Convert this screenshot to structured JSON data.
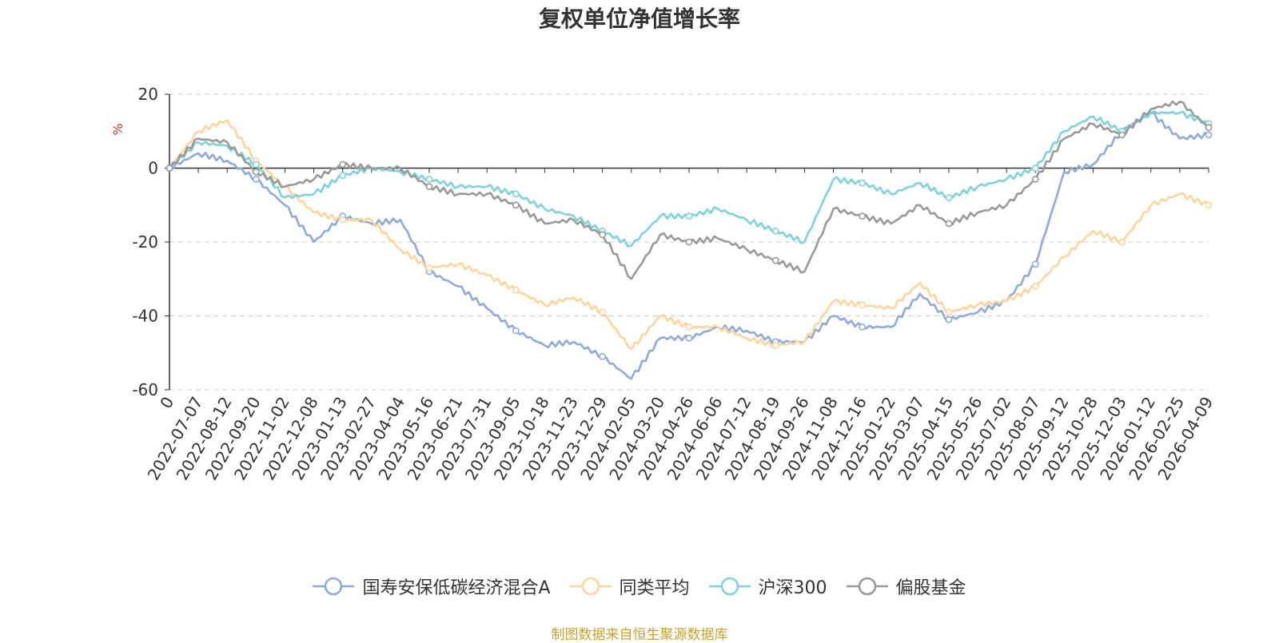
{
  "chart_data": {
    "type": "line",
    "title": "复权单位净值增长率",
    "ylabel": "%",
    "xlabel": "",
    "ylim": [
      -60,
      20
    ],
    "yticks": [
      20,
      0,
      -20,
      -40,
      -60
    ],
    "grid": true,
    "legend_position": "bottom",
    "source_note": "制图数据来自恒生聚源数据库",
    "categories": [
      "0",
      "2022-07-07",
      "2022-08-12",
      "2022-09-20",
      "2022-11-02",
      "2022-12-08",
      "2023-01-13",
      "2023-02-27",
      "2023-04-04",
      "2023-05-16",
      "2023-06-21",
      "2023-07-31",
      "2023-09-05",
      "2023-10-18",
      "2023-11-23",
      "2023-12-29",
      "2024-02-05",
      "2024-03-20",
      "2024-04-26",
      "2024-06-06",
      "2024-07-12",
      "2024-08-19",
      "2024-09-26",
      "2024-11-08",
      "2024-12-16",
      "2025-01-22",
      "2025-03-07",
      "2025-04-15",
      "2025-05-26",
      "2025-07-02",
      "2025-08-07",
      "2025-09-12",
      "2025-10-28",
      "2025-12-03",
      "2026-01-12",
      "2026-02-25",
      "2026-04-09"
    ],
    "series": [
      {
        "name": "国寿安保低碳经济混合A",
        "color": "#8eaadc",
        "values": [
          0,
          4,
          2,
          -3,
          -10,
          -20,
          -13,
          -15,
          -14,
          -28,
          -32,
          -38,
          -44,
          -48,
          -47,
          -51,
          -57,
          -46,
          -46,
          -43,
          -44,
          -47,
          -47,
          -40,
          -43,
          -43,
          -34,
          -41,
          -39,
          -36,
          -26,
          -1,
          1,
          10,
          15,
          8,
          9
        ]
      },
      {
        "name": "同类平均",
        "color": "#fdd59a",
        "values": [
          0,
          10,
          13,
          2,
          -5,
          -12,
          -14,
          -14,
          -22,
          -27,
          -26,
          -29,
          -33,
          -37,
          -35,
          -39,
          -49,
          -40,
          -43,
          -43,
          -46,
          -48,
          -47,
          -36,
          -37,
          -38,
          -31,
          -39,
          -37,
          -36,
          -32,
          -24,
          -17,
          -20,
          -10,
          -7,
          -10
        ]
      },
      {
        "name": "沪深300",
        "color": "#7dd3d8",
        "values": [
          0,
          7,
          6,
          1,
          -8,
          -7,
          -2,
          0,
          -1,
          -3,
          -5,
          -5,
          -7,
          -11,
          -13,
          -17,
          -21,
          -13,
          -13,
          -11,
          -14,
          -17,
          -20,
          -3,
          -4,
          -7,
          -4,
          -8,
          -5,
          -3,
          0,
          10,
          14,
          10,
          15,
          15,
          12
        ]
      },
      {
        "name": "偏股基金",
        "color": "#999999",
        "values": [
          0,
          8,
          7,
          -1,
          -5,
          -3,
          1,
          0,
          0,
          -5,
          -7,
          -7,
          -10,
          -15,
          -14,
          -18,
          -30,
          -18,
          -20,
          -19,
          -22,
          -25,
          -28,
          -11,
          -13,
          -15,
          -10,
          -15,
          -12,
          -10,
          -3,
          8,
          12,
          9,
          16,
          18,
          11
        ]
      }
    ]
  }
}
